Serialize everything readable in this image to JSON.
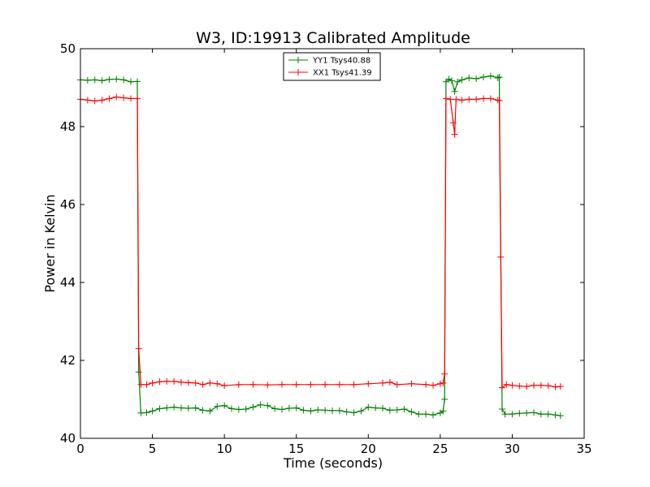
{
  "chart_data": {
    "type": "line",
    "title": "W3, ID:19913 Calibrated Amplitude",
    "xlabel": "Time (seconds)",
    "ylabel": "Power in Kelvin",
    "xlim": [
      0,
      35
    ],
    "ylim": [
      40,
      50
    ],
    "xticks": [
      0,
      5,
      10,
      15,
      20,
      25,
      30,
      35
    ],
    "yticks": [
      40,
      42,
      44,
      46,
      48,
      50
    ],
    "grid": false,
    "legend": "top-center",
    "series": [
      {
        "name": "YY1 Tsys40.88",
        "color": "#008000",
        "marker": "plus",
        "points": [
          [
            0.0,
            49.2
          ],
          [
            0.5,
            49.19
          ],
          [
            1.0,
            49.2
          ],
          [
            1.5,
            49.18
          ],
          [
            2.0,
            49.21
          ],
          [
            2.5,
            49.22
          ],
          [
            3.0,
            49.2
          ],
          [
            3.5,
            49.15
          ],
          [
            3.95,
            49.16
          ],
          [
            4.05,
            41.7
          ],
          [
            4.2,
            40.65
          ],
          [
            4.6,
            40.66
          ],
          [
            5.0,
            40.7
          ],
          [
            5.5,
            40.76
          ],
          [
            6.0,
            40.78
          ],
          [
            6.5,
            40.8
          ],
          [
            7.0,
            40.78
          ],
          [
            7.5,
            40.77
          ],
          [
            8.0,
            40.78
          ],
          [
            8.5,
            40.72
          ],
          [
            9.0,
            40.7
          ],
          [
            9.5,
            40.82
          ],
          [
            10.0,
            40.84
          ],
          [
            10.5,
            40.76
          ],
          [
            11.0,
            40.74
          ],
          [
            11.5,
            40.75
          ],
          [
            12.0,
            40.8
          ],
          [
            12.5,
            40.86
          ],
          [
            13.0,
            40.84
          ],
          [
            13.5,
            40.76
          ],
          [
            14.0,
            40.74
          ],
          [
            14.5,
            40.77
          ],
          [
            15.0,
            40.78
          ],
          [
            15.5,
            40.72
          ],
          [
            16.0,
            40.7
          ],
          [
            16.5,
            40.73
          ],
          [
            17.0,
            40.72
          ],
          [
            17.5,
            40.71
          ],
          [
            18.0,
            40.71
          ],
          [
            18.5,
            40.68
          ],
          [
            19.0,
            40.66
          ],
          [
            19.5,
            40.7
          ],
          [
            20.0,
            40.8
          ],
          [
            20.5,
            40.78
          ],
          [
            21.0,
            40.77
          ],
          [
            21.5,
            40.72
          ],
          [
            22.0,
            40.73
          ],
          [
            22.5,
            40.75
          ],
          [
            23.0,
            40.68
          ],
          [
            23.5,
            40.62
          ],
          [
            24.0,
            40.62
          ],
          [
            24.5,
            40.6
          ],
          [
            25.0,
            40.65
          ],
          [
            25.2,
            40.7
          ],
          [
            25.3,
            41.0
          ],
          [
            25.4,
            49.15
          ],
          [
            25.6,
            49.22
          ],
          [
            25.8,
            49.18
          ],
          [
            26.0,
            48.9
          ],
          [
            26.2,
            49.15
          ],
          [
            26.5,
            49.2
          ],
          [
            27.0,
            49.25
          ],
          [
            27.5,
            49.23
          ],
          [
            28.0,
            49.27
          ],
          [
            28.5,
            49.3
          ],
          [
            29.0,
            49.25
          ],
          [
            29.1,
            49.27
          ],
          [
            29.3,
            40.75
          ],
          [
            29.5,
            40.62
          ],
          [
            30.0,
            40.62
          ],
          [
            30.5,
            40.64
          ],
          [
            31.0,
            40.65
          ],
          [
            31.5,
            40.66
          ],
          [
            32.0,
            40.62
          ],
          [
            32.5,
            40.62
          ],
          [
            33.0,
            40.6
          ],
          [
            33.35,
            40.58
          ]
        ]
      },
      {
        "name": "XX1 Tsys41.39",
        "color": "#ff0000",
        "marker": "plus",
        "points": [
          [
            0.0,
            48.7
          ],
          [
            0.5,
            48.68
          ],
          [
            1.0,
            48.66
          ],
          [
            1.5,
            48.68
          ],
          [
            2.0,
            48.72
          ],
          [
            2.5,
            48.76
          ],
          [
            3.0,
            48.74
          ],
          [
            3.5,
            48.72
          ],
          [
            3.95,
            48.72
          ],
          [
            4.05,
            42.3
          ],
          [
            4.2,
            41.38
          ],
          [
            4.6,
            41.38
          ],
          [
            5.0,
            41.42
          ],
          [
            5.5,
            41.45
          ],
          [
            6.0,
            41.46
          ],
          [
            6.5,
            41.46
          ],
          [
            7.0,
            41.44
          ],
          [
            7.5,
            41.43
          ],
          [
            8.0,
            41.42
          ],
          [
            8.5,
            41.38
          ],
          [
            9.0,
            41.42
          ],
          [
            9.5,
            41.4
          ],
          [
            10.0,
            41.35
          ],
          [
            11.0,
            41.38
          ],
          [
            12.0,
            41.38
          ],
          [
            13.0,
            41.37
          ],
          [
            14.0,
            41.38
          ],
          [
            15.0,
            41.38
          ],
          [
            16.0,
            41.38
          ],
          [
            17.0,
            41.38
          ],
          [
            18.0,
            41.38
          ],
          [
            19.0,
            41.38
          ],
          [
            20.0,
            41.4
          ],
          [
            21.0,
            41.42
          ],
          [
            21.5,
            41.44
          ],
          [
            22.0,
            41.38
          ],
          [
            23.0,
            41.4
          ],
          [
            24.0,
            41.38
          ],
          [
            24.5,
            41.36
          ],
          [
            25.0,
            41.4
          ],
          [
            25.2,
            41.42
          ],
          [
            25.3,
            41.65
          ],
          [
            25.4,
            48.72
          ],
          [
            25.7,
            48.7
          ],
          [
            25.9,
            48.1
          ],
          [
            26.0,
            47.8
          ],
          [
            26.1,
            48.7
          ],
          [
            26.5,
            48.68
          ],
          [
            27.0,
            48.7
          ],
          [
            27.5,
            48.7
          ],
          [
            28.0,
            48.72
          ],
          [
            28.5,
            48.72
          ],
          [
            29.0,
            48.68
          ],
          [
            29.1,
            48.67
          ],
          [
            29.2,
            44.65
          ],
          [
            29.3,
            41.3
          ],
          [
            29.6,
            41.38
          ],
          [
            30.0,
            41.36
          ],
          [
            30.5,
            41.34
          ],
          [
            31.0,
            41.33
          ],
          [
            31.5,
            41.36
          ],
          [
            32.0,
            41.36
          ],
          [
            32.5,
            41.35
          ],
          [
            33.0,
            41.32
          ],
          [
            33.35,
            41.33
          ]
        ]
      }
    ]
  }
}
